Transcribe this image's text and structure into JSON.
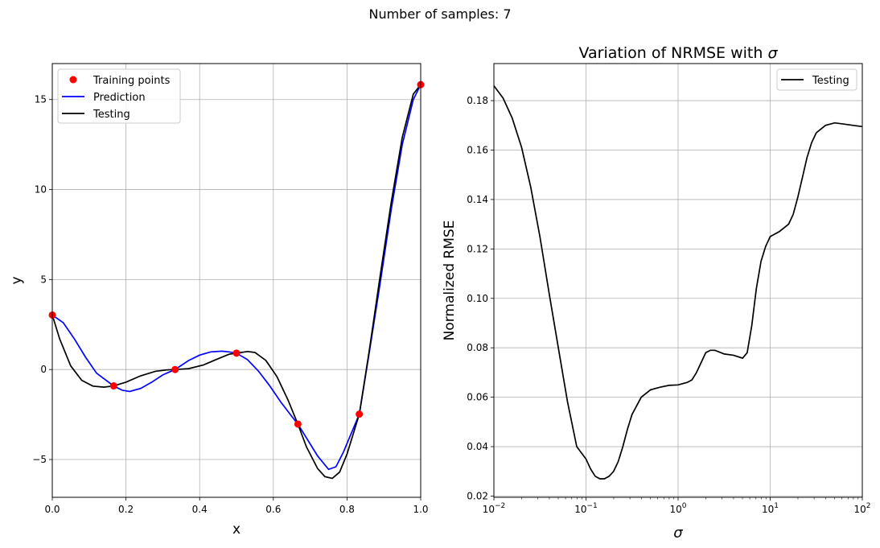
{
  "figure": {
    "suptitle": "Number of samples: 7"
  },
  "chart_data": [
    {
      "type": "line",
      "title": "",
      "xlabel": "x",
      "ylabel": "y",
      "xlim": [
        0.0,
        1.0
      ],
      "ylim": [
        -7.1,
        17.0
      ],
      "xticks": [
        0.0,
        0.2,
        0.4,
        0.6,
        0.8,
        1.0
      ],
      "xtick_labels": [
        "0.0",
        "0.2",
        "0.4",
        "0.6",
        "0.8",
        "1.0"
      ],
      "yticks": [
        -5,
        0,
        5,
        10,
        15
      ],
      "ytick_labels": [
        "−5",
        "0",
        "5",
        "10",
        "15"
      ],
      "grid": true,
      "legend_position": "top-left",
      "series": [
        {
          "name": "Training points",
          "kind": "scatter",
          "color": "#ff0000",
          "x": [
            0.0,
            0.1667,
            0.3333,
            0.5,
            0.6667,
            0.8333,
            1.0
          ],
          "y": [
            3.03,
            -0.91,
            0.0,
            0.91,
            -3.03,
            -2.48,
            15.83
          ]
        },
        {
          "name": "Prediction",
          "kind": "line",
          "color": "#0000ff",
          "x": [
            0,
            0.03,
            0.06,
            0.09,
            0.12,
            0.1667,
            0.19,
            0.21,
            0.24,
            0.27,
            0.3,
            0.3333,
            0.37,
            0.4,
            0.43,
            0.46,
            0.48,
            0.5,
            0.53,
            0.56,
            0.59,
            0.62,
            0.65,
            0.6667,
            0.69,
            0.72,
            0.75,
            0.77,
            0.79,
            0.8333,
            0.86,
            0.89,
            0.92,
            0.95,
            0.98,
            1.0
          ],
          "y": [
            3.03,
            2.6,
            1.7,
            0.7,
            -0.2,
            -0.91,
            -1.15,
            -1.22,
            -1.05,
            -0.7,
            -0.3,
            0.0,
            0.5,
            0.8,
            0.98,
            1.02,
            0.98,
            0.91,
            0.55,
            -0.1,
            -0.9,
            -1.8,
            -2.6,
            -3.03,
            -3.8,
            -4.8,
            -5.55,
            -5.4,
            -4.6,
            -2.48,
            0.9,
            4.8,
            8.9,
            12.5,
            15.0,
            15.83
          ]
        },
        {
          "name": "Testing",
          "kind": "line",
          "color": "#000000",
          "x": [
            0,
            0.02,
            0.05,
            0.08,
            0.11,
            0.14,
            0.1667,
            0.2,
            0.24,
            0.28,
            0.31,
            0.3333,
            0.37,
            0.41,
            0.45,
            0.48,
            0.5,
            0.53,
            0.55,
            0.58,
            0.61,
            0.64,
            0.6667,
            0.69,
            0.72,
            0.74,
            0.76,
            0.78,
            0.8,
            0.8333,
            0.86,
            0.89,
            0.92,
            0.95,
            0.98,
            1.0
          ],
          "y": [
            3.03,
            1.7,
            0.2,
            -0.6,
            -0.92,
            -0.98,
            -0.91,
            -0.7,
            -0.35,
            -0.1,
            -0.02,
            0.0,
            0.05,
            0.25,
            0.6,
            0.85,
            0.91,
            1.0,
            0.95,
            0.5,
            -0.4,
            -1.7,
            -3.03,
            -4.3,
            -5.5,
            -5.95,
            -6.05,
            -5.7,
            -4.7,
            -2.48,
            1.0,
            5.2,
            9.3,
            12.9,
            15.3,
            15.83
          ]
        }
      ]
    },
    {
      "type": "line",
      "title": "Variation of NRMSE with σ",
      "xlabel": "σ",
      "ylabel": "Normalized RMSE",
      "xscale": "log",
      "xlim": [
        0.01,
        100
      ],
      "ylim": [
        0.0195,
        0.195
      ],
      "xticks": [
        0.01,
        0.1,
        1,
        10,
        100
      ],
      "xtick_labels": [
        {
          "base": "10",
          "exp": "−2"
        },
        {
          "base": "10",
          "exp": "−1"
        },
        {
          "base": "10",
          "exp": "0"
        },
        {
          "base": "10",
          "exp": "1"
        },
        {
          "base": "10",
          "exp": "2"
        }
      ],
      "yticks": [
        0.02,
        0.04,
        0.06,
        0.08,
        0.1,
        0.12,
        0.14,
        0.16,
        0.18
      ],
      "ytick_labels": [
        "0.02",
        "0.04",
        "0.06",
        "0.08",
        "0.10",
        "0.12",
        "0.14",
        "0.16",
        "0.18"
      ],
      "grid": true,
      "legend_position": "top-right",
      "series": [
        {
          "name": "Testing",
          "kind": "line",
          "color": "#000000",
          "x": [
            0.01,
            0.0126,
            0.0158,
            0.02,
            0.0251,
            0.0316,
            0.0398,
            0.0501,
            0.0631,
            0.0794,
            0.1,
            0.1122,
            0.1259,
            0.1413,
            0.1585,
            0.1778,
            0.1995,
            0.2239,
            0.2512,
            0.2818,
            0.3162,
            0.3981,
            0.5012,
            0.631,
            0.7943,
            1.0,
            1.2589,
            1.4125,
            1.5849,
            1.7783,
            1.9953,
            2.2387,
            2.5119,
            3.1623,
            3.981,
            5.0119,
            5.6234,
            6.3096,
            7.0795,
            7.9433,
            8.9125,
            10.0,
            12.589,
            15.849,
            17.783,
            19.953,
            22.387,
            25.119,
            28.184,
            31.623,
            39.811,
            50.119,
            63.096,
            79.433,
            100.0
          ],
          "y": [
            0.186,
            0.181,
            0.173,
            0.161,
            0.145,
            0.125,
            0.102,
            0.08,
            0.058,
            0.04,
            0.035,
            0.031,
            0.028,
            0.027,
            0.027,
            0.028,
            0.03,
            0.034,
            0.04,
            0.047,
            0.053,
            0.06,
            0.063,
            0.064,
            0.0648,
            0.065,
            0.066,
            0.067,
            0.07,
            0.074,
            0.078,
            0.079,
            0.079,
            0.0775,
            0.077,
            0.0758,
            0.078,
            0.089,
            0.104,
            0.115,
            0.121,
            0.125,
            0.127,
            0.13,
            0.134,
            0.141,
            0.149,
            0.157,
            0.163,
            0.167,
            0.17,
            0.171,
            0.1705,
            0.17,
            0.1695
          ]
        }
      ]
    }
  ]
}
